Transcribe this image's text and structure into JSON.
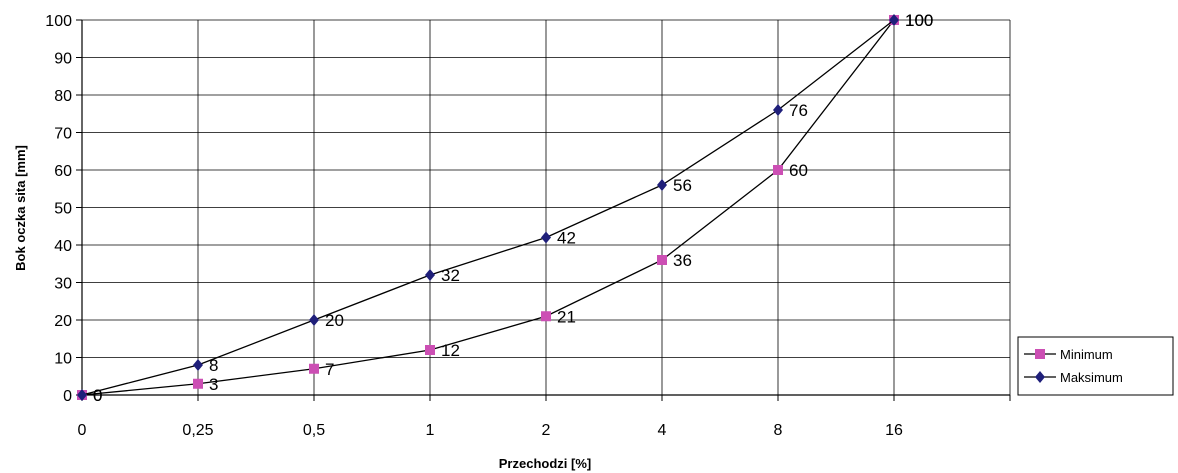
{
  "chart_data": {
    "type": "line",
    "title": "",
    "xlabel": "Przechodzi [%]",
    "ylabel": "Bok oczka sita [mm]",
    "categories": [
      "0",
      "0,25",
      "0,5",
      "1",
      "2",
      "4",
      "8",
      "16"
    ],
    "ylim": [
      0,
      100
    ],
    "yticks": [
      0,
      10,
      20,
      30,
      40,
      50,
      60,
      70,
      80,
      90,
      100
    ],
    "grid": true,
    "legend_position": "right",
    "series": [
      {
        "name": "Minimum",
        "values": [
          0,
          3,
          7,
          12,
          21,
          36,
          60,
          100
        ],
        "color": "#CC4FB4",
        "marker": "square"
      },
      {
        "name": "Maksimum",
        "values": [
          0,
          8,
          20,
          32,
          42,
          56,
          76,
          100
        ],
        "color": "#1F1F7A",
        "marker": "diamond"
      }
    ]
  }
}
